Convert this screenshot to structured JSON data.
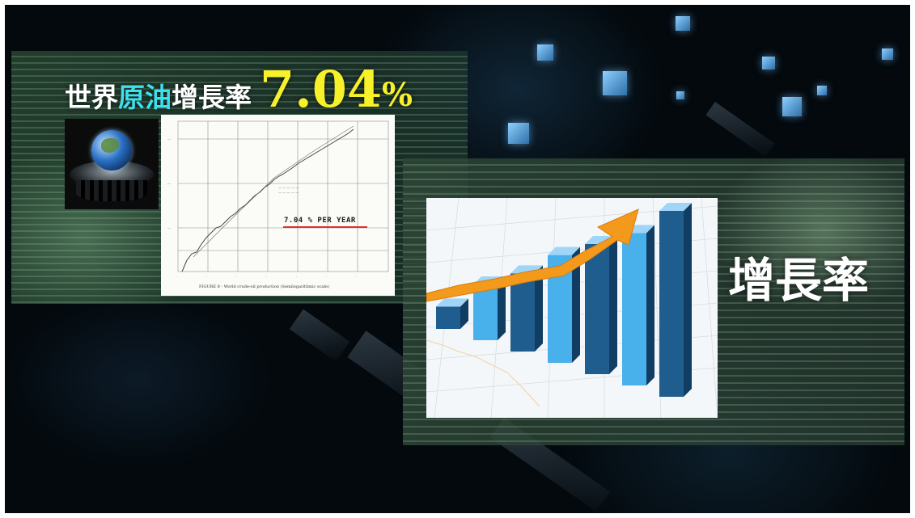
{
  "title": {
    "part1": "世界",
    "part2": "原油",
    "part3": "增長率",
    "value": "7.04",
    "percent": "%"
  },
  "graph_paper": {
    "handwritten_note": "7.04 % PER YEAR",
    "caption": "FIGURE 8 - World crude-oil production (Semilogarithmic scale)"
  },
  "right_title": "增長率",
  "bar_chart_photo": {
    "bar_levels": [
      0.12,
      0.3,
      0.42,
      0.58,
      0.7,
      0.82,
      1.0
    ]
  },
  "colors": {
    "title_white": "#ffffff",
    "title_cyan": "#3fe0ee",
    "title_yellow": "#f6f12a",
    "arrow_orange": "#f39a1d",
    "bar_dark": "#1f5d8f",
    "bar_light": "#48b0ea",
    "annotation_red": "#e0302e"
  },
  "icons": [
    "globe-oil-icon",
    "growth-arrow-icon"
  ]
}
